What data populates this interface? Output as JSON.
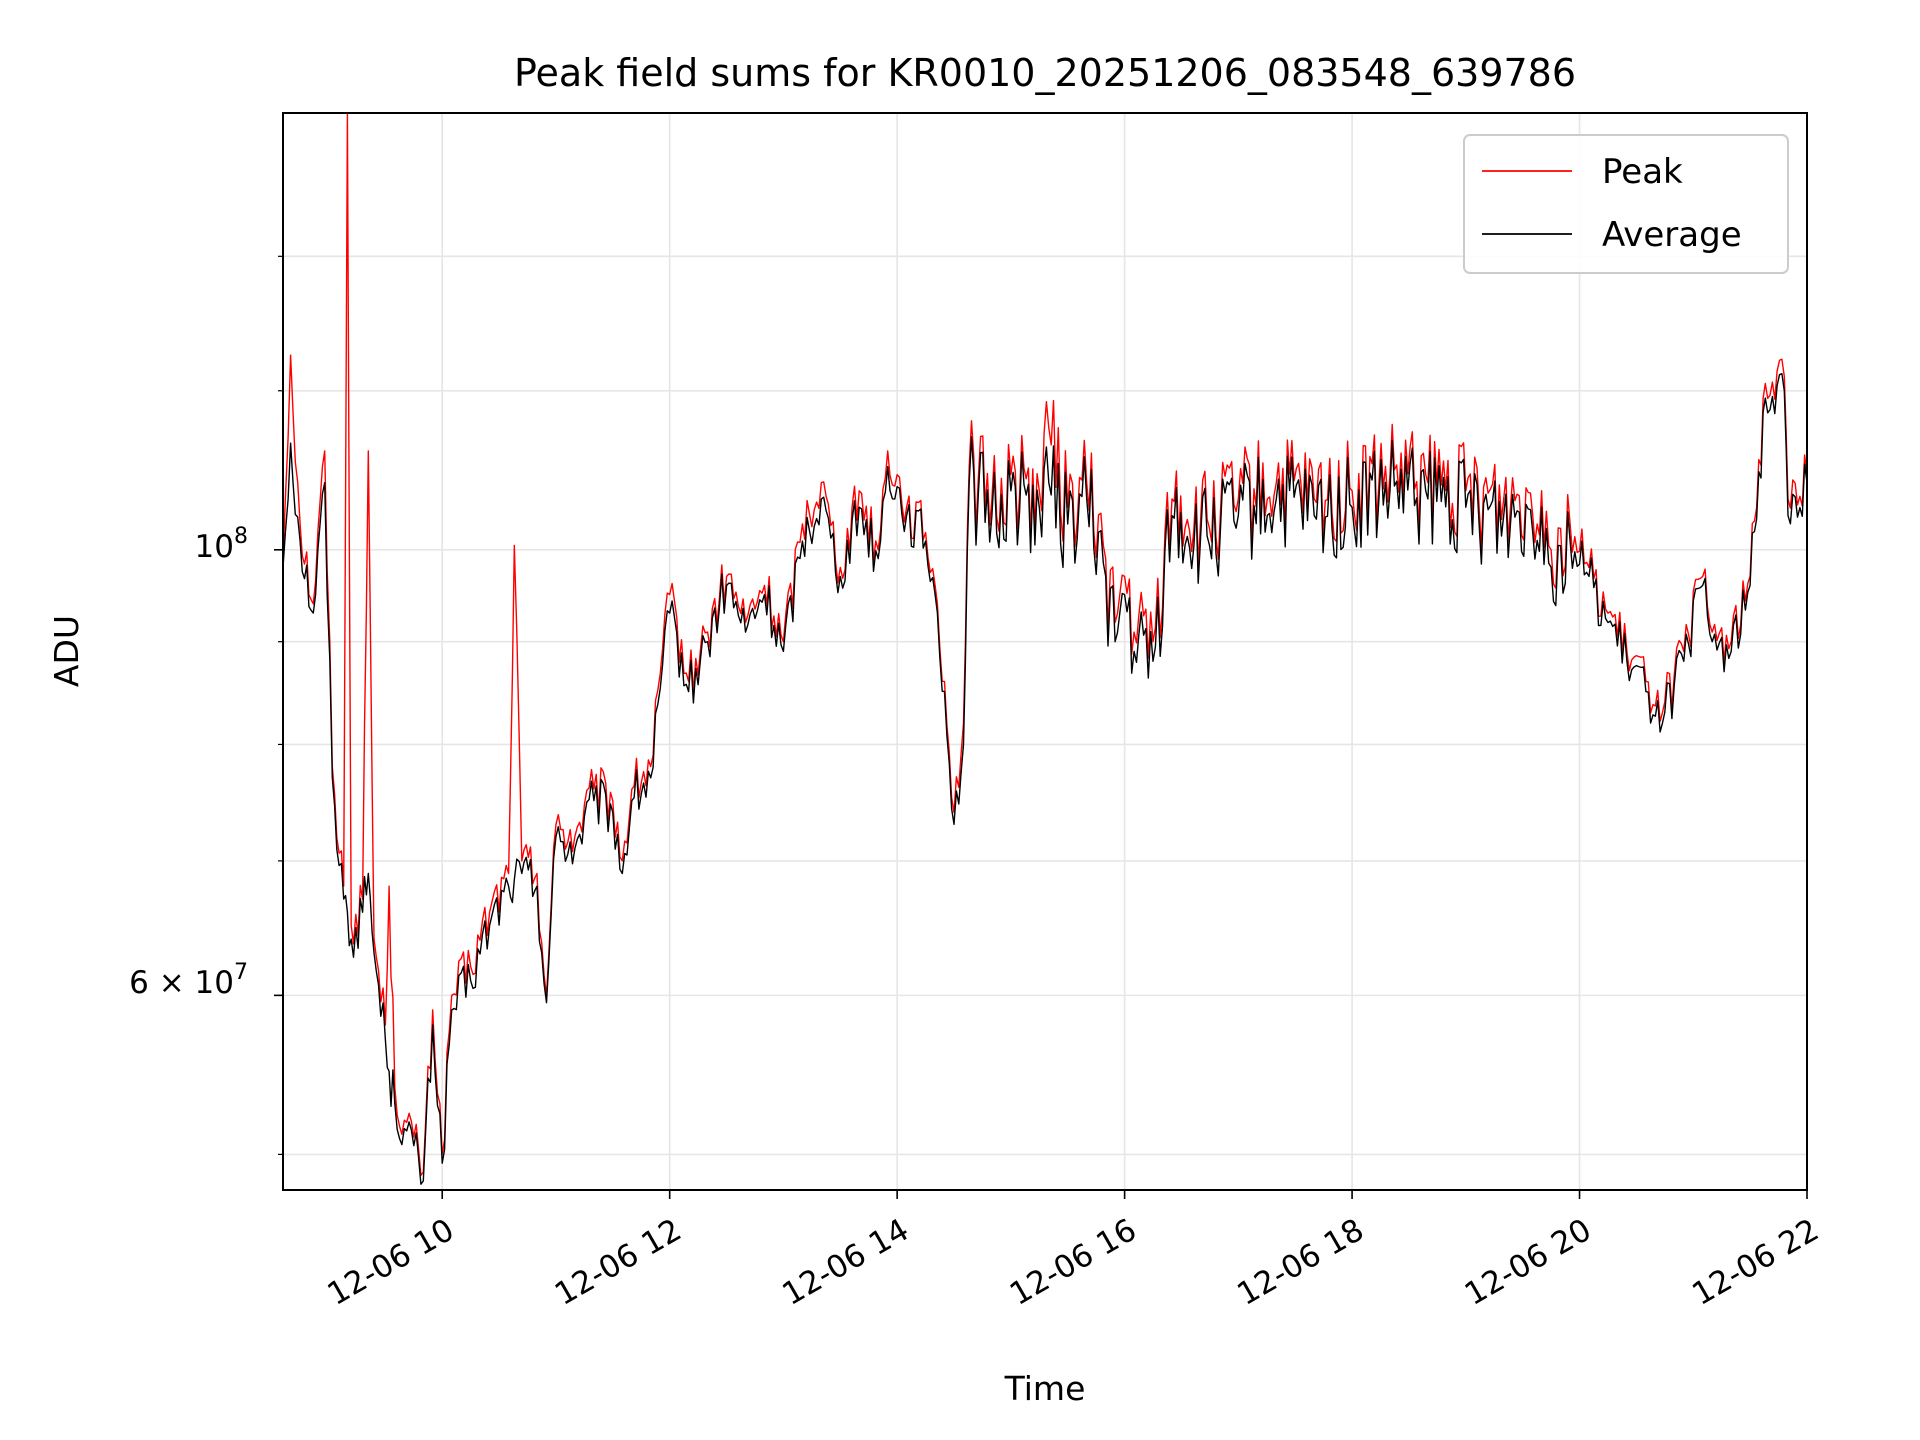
{
  "chart_data": {
    "type": "line",
    "title": "Peak field sums for KR0010_20251206_083548_639786",
    "xlabel": "Time",
    "ylabel": "ADU",
    "yscale": "log",
    "xlim": [
      "12-06 08:36",
      "12-06 22:00"
    ],
    "ylim": [
      48000000,
      165000000
    ],
    "grid": true,
    "legend_position": "top-right",
    "x_ticks": [
      "12-06 10",
      "12-06 12",
      "12-06 14",
      "12-06 16",
      "12-06 18",
      "12-06 20",
      "12-06 22"
    ],
    "y_tick_labels": {
      "major_1e8": "10",
      "major_1e8_exp": "8",
      "major_6e7_mant": "6 × 10",
      "major_6e7_exp": "7"
    },
    "series": [
      {
        "name": "Peak",
        "color": "#ff0000",
        "points": [
          [
            "12-06 08:36",
            99000000
          ],
          [
            "12-06 08:40",
            125000000
          ],
          [
            "12-06 08:45",
            103000000
          ],
          [
            "12-06 08:52",
            94000000
          ],
          [
            "12-06 08:58",
            112000000
          ],
          [
            "12-06 09:02",
            78000000
          ],
          [
            "12-06 09:08",
            68000000
          ],
          [
            "12-06 09:10",
            165000000
          ],
          [
            "12-06 09:12",
            65000000
          ],
          [
            "12-06 09:18",
            67000000
          ],
          [
            "12-06 09:21",
            112000000
          ],
          [
            "12-06 09:24",
            64000000
          ],
          [
            "12-06 09:30",
            58000000
          ],
          [
            "12-06 09:32",
            68000000
          ],
          [
            "12-06 09:35",
            54000000
          ],
          [
            "12-06 09:40",
            52000000
          ],
          [
            "12-06 09:45",
            51000000
          ],
          [
            "12-06 09:50",
            49000000
          ],
          [
            "12-06 09:55",
            59000000
          ],
          [
            "12-06 10:00",
            50000000
          ],
          [
            "12-06 10:05",
            60000000
          ],
          [
            "12-06 10:15",
            62000000
          ],
          [
            "12-06 10:25",
            66000000
          ],
          [
            "12-06 10:35",
            69000000
          ],
          [
            "12-06 10:38",
            100500000
          ],
          [
            "12-06 10:42",
            70000000
          ],
          [
            "12-06 10:50",
            69000000
          ],
          [
            "12-06 10:55",
            60000000
          ],
          [
            "12-06 11:00",
            73000000
          ],
          [
            "12-06 11:10",
            72000000
          ],
          [
            "12-06 11:20",
            76000000
          ],
          [
            "12-06 11:30",
            75000000
          ],
          [
            "12-06 11:35",
            70000000
          ],
          [
            "12-06 11:40",
            76000000
          ],
          [
            "12-06 11:50",
            78000000
          ],
          [
            "12-06 12:00",
            95000000
          ],
          [
            "12-06 12:10",
            86000000
          ],
          [
            "12-06 12:20",
            91000000
          ],
          [
            "12-06 12:30",
            97000000
          ],
          [
            "12-06 12:40",
            92000000
          ],
          [
            "12-06 12:50",
            96000000
          ],
          [
            "12-06 13:00",
            90000000
          ],
          [
            "12-06 13:10",
            103000000
          ],
          [
            "12-06 13:20",
            108000000
          ],
          [
            "12-06 13:30",
            98000000
          ],
          [
            "12-06 13:40",
            107000000
          ],
          [
            "12-06 13:50",
            100000000
          ],
          [
            "12-06 13:55",
            112000000
          ],
          [
            "12-06 14:05",
            105000000
          ],
          [
            "12-06 14:15",
            102000000
          ],
          [
            "12-06 14:20",
            96000000
          ],
          [
            "12-06 14:25",
            86000000
          ],
          [
            "12-06 14:30",
            74000000
          ],
          [
            "12-06 14:35",
            82000000
          ],
          [
            "12-06 14:38",
            110000000
          ],
          [
            "12-06 14:50",
            106000000
          ],
          [
            "12-06 15:00",
            109000000
          ],
          [
            "12-06 15:15",
            107000000
          ],
          [
            "12-06 15:20",
            115000000
          ],
          [
            "12-06 15:30",
            105000000
          ],
          [
            "12-06 15:40",
            108000000
          ],
          [
            "12-06 15:50",
            99000000
          ],
          [
            "12-06 15:55",
            92000000
          ],
          [
            "12-06 16:00",
            97000000
          ],
          [
            "12-06 16:05",
            91000000
          ],
          [
            "12-06 16:15",
            90000000
          ],
          [
            "12-06 16:25",
            106000000
          ],
          [
            "12-06 16:40",
            103000000
          ],
          [
            "12-06 17:00",
            106000000
          ],
          [
            "12-06 17:20",
            108000000
          ],
          [
            "12-06 17:40",
            106000000
          ],
          [
            "12-06 18:00",
            107000000
          ],
          [
            "12-06 18:20",
            109000000
          ],
          [
            "12-06 18:40",
            108000000
          ],
          [
            "12-06 19:00",
            107000000
          ],
          [
            "12-06 19:20",
            106000000
          ],
          [
            "12-06 19:40",
            107000000
          ],
          [
            "12-06 19:45",
            100000000
          ],
          [
            "12-06 19:55",
            103000000
          ],
          [
            "12-06 20:05",
            98000000
          ],
          [
            "12-06 20:15",
            93000000
          ],
          [
            "12-06 20:25",
            89000000
          ],
          [
            "12-06 20:35",
            86000000
          ],
          [
            "12-06 20:45",
            84000000
          ],
          [
            "12-06 20:55",
            89000000
          ],
          [
            "12-06 21:05",
            97000000
          ],
          [
            "12-06 21:10",
            91000000
          ],
          [
            "12-06 21:20",
            90000000
          ],
          [
            "12-06 21:30",
            97000000
          ],
          [
            "12-06 21:38",
            121000000
          ],
          [
            "12-06 21:48",
            122000000
          ],
          [
            "12-06 21:50",
            106000000
          ],
          [
            "12-06 22:00",
            109000000
          ]
        ]
      },
      {
        "name": "Average",
        "color": "#000000",
        "points": [
          [
            "12-06 08:36",
            98000000
          ],
          [
            "12-06 08:40",
            113000000
          ],
          [
            "12-06 08:45",
            101000000
          ],
          [
            "12-06 08:52",
            93000000
          ],
          [
            "12-06 08:58",
            108000000
          ],
          [
            "12-06 09:02",
            77000000
          ],
          [
            "12-06 09:08",
            67000000
          ],
          [
            "12-06 09:10",
            66000000
          ],
          [
            "12-06 09:12",
            64000000
          ],
          [
            "12-06 09:18",
            66000000
          ],
          [
            "12-06 09:21",
            69000000
          ],
          [
            "12-06 09:24",
            63000000
          ],
          [
            "12-06 09:30",
            57000000
          ],
          [
            "12-06 09:32",
            55000000
          ],
          [
            "12-06 09:35",
            53000000
          ],
          [
            "12-06 09:40",
            51500000
          ],
          [
            "12-06 09:45",
            50500000
          ],
          [
            "12-06 09:50",
            48500000
          ],
          [
            "12-06 09:55",
            58000000
          ],
          [
            "12-06 10:00",
            49500000
          ],
          [
            "12-06 10:05",
            59000000
          ],
          [
            "12-06 10:15",
            61000000
          ],
          [
            "12-06 10:25",
            65000000
          ],
          [
            "12-06 10:35",
            68000000
          ],
          [
            "12-06 10:38",
            68500000
          ],
          [
            "12-06 10:42",
            69000000
          ],
          [
            "12-06 10:50",
            68000000
          ],
          [
            "12-06 10:55",
            59500000
          ],
          [
            "12-06 11:00",
            72000000
          ],
          [
            "12-06 11:10",
            71000000
          ],
          [
            "12-06 11:20",
            75000000
          ],
          [
            "12-06 11:30",
            74000000
          ],
          [
            "12-06 11:35",
            69000000
          ],
          [
            "12-06 11:40",
            75000000
          ],
          [
            "12-06 11:50",
            77000000
          ],
          [
            "12-06 12:00",
            93000000
          ],
          [
            "12-06 12:10",
            85000000
          ],
          [
            "12-06 12:20",
            90000000
          ],
          [
            "12-06 12:30",
            96000000
          ],
          [
            "12-06 12:40",
            91000000
          ],
          [
            "12-06 12:50",
            95000000
          ],
          [
            "12-06 13:00",
            89000000
          ],
          [
            "12-06 13:10",
            101000000
          ],
          [
            "12-06 13:20",
            106000000
          ],
          [
            "12-06 13:30",
            97000000
          ],
          [
            "12-06 13:40",
            105000000
          ],
          [
            "12-06 13:50",
            99000000
          ],
          [
            "12-06 13:55",
            110000000
          ],
          [
            "12-06 14:05",
            104000000
          ],
          [
            "12-06 14:15",
            101000000
          ],
          [
            "12-06 14:20",
            95000000
          ],
          [
            "12-06 14:25",
            85000000
          ],
          [
            "12-06 14:30",
            73000000
          ],
          [
            "12-06 14:35",
            80000000
          ],
          [
            "12-06 14:38",
            108000000
          ],
          [
            "12-06 14:50",
            104000000
          ],
          [
            "12-06 15:00",
            107000000
          ],
          [
            "12-06 15:15",
            105000000
          ],
          [
            "12-06 15:20",
            108000000
          ],
          [
            "12-06 15:30",
            103000000
          ],
          [
            "12-06 15:40",
            106000000
          ],
          [
            "12-06 15:50",
            97000000
          ],
          [
            "12-06 15:55",
            90000000
          ],
          [
            "12-06 16:00",
            95000000
          ],
          [
            "12-06 16:05",
            89000000
          ],
          [
            "12-06 16:15",
            88000000
          ],
          [
            "12-06 16:25",
            104000000
          ],
          [
            "12-06 16:40",
            101000000
          ],
          [
            "12-06 17:00",
            104000000
          ],
          [
            "12-06 17:20",
            106000000
          ],
          [
            "12-06 17:40",
            104000000
          ],
          [
            "12-06 18:00",
            105000000
          ],
          [
            "12-06 18:20",
            107000000
          ],
          [
            "12-06 18:40",
            106000000
          ],
          [
            "12-06 19:00",
            105000000
          ],
          [
            "12-06 19:20",
            104000000
          ],
          [
            "12-06 19:40",
            105000000
          ],
          [
            "12-06 19:45",
            98000000
          ],
          [
            "12-06 19:55",
            101000000
          ],
          [
            "12-06 20:05",
            97000000
          ],
          [
            "12-06 20:15",
            92000000
          ],
          [
            "12-06 20:25",
            88000000
          ],
          [
            "12-06 20:35",
            85000000
          ],
          [
            "12-06 20:45",
            83000000
          ],
          [
            "12-06 20:55",
            88000000
          ],
          [
            "12-06 21:05",
            96000000
          ],
          [
            "12-06 21:10",
            90000000
          ],
          [
            "12-06 21:20",
            89000000
          ],
          [
            "12-06 21:30",
            96000000
          ],
          [
            "12-06 21:38",
            119000000
          ],
          [
            "12-06 21:48",
            120000000
          ],
          [
            "12-06 21:50",
            104000000
          ],
          [
            "12-06 22:00",
            108000000
          ]
        ]
      }
    ]
  }
}
